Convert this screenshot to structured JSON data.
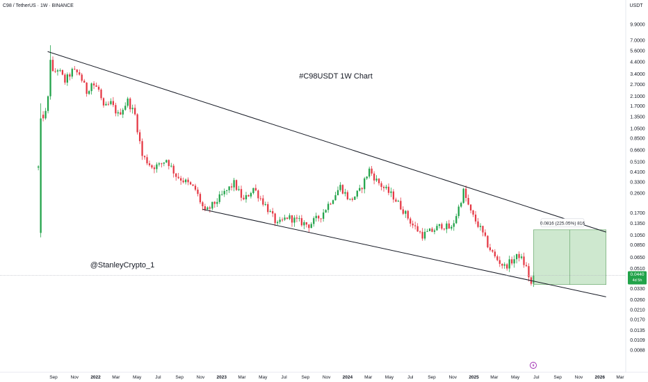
{
  "header": {
    "symbol_title": "C98 / TetherUS · 1W · BINANCE",
    "currency": "USDT"
  },
  "annotations": {
    "chart_title": "#C98USDT 1W Chart",
    "author": "@StanleyCrypto_1",
    "target_label": "0.0816 (225.05%) 816"
  },
  "price_tag": {
    "value": "0.0440",
    "countdown": "4d 5h",
    "color": "#22a34a"
  },
  "colors": {
    "up": "#22a34a",
    "down": "#e53945",
    "target_zone": "#a5d6a7",
    "target_border": "#5b9e5e",
    "trendline": "#131722"
  },
  "chart_data": {
    "type": "candlestick",
    "title": "#C98USDT 1W Chart",
    "y_scale": "log",
    "ylim": [
      0.0078,
      9.9
    ],
    "y_ticks": [
      "9.9000",
      "7.0000",
      "5.6000",
      "4.4000",
      "3.4000",
      "2.7000",
      "2.1000",
      "1.7000",
      "1.3500",
      "1.0500",
      "0.8500",
      "0.6600",
      "0.5100",
      "0.4100",
      "0.3300",
      "0.2600",
      "0.1700",
      "0.1350",
      "0.1050",
      "0.0850",
      "0.0650",
      "0.0510",
      "0.0330",
      "0.0260",
      "0.0210",
      "0.0170",
      "0.0135",
      "0.0109",
      "0.0088"
    ],
    "x_ticks": [
      "Sep",
      "Nov",
      "2022",
      "Mar",
      "May",
      "Jul",
      "Sep",
      "Nov",
      "2023",
      "Mar",
      "May",
      "Jul",
      "Sep",
      "Nov",
      "2024",
      "Mar",
      "May",
      "Jul",
      "Sep",
      "Nov",
      "2025",
      "Mar",
      "May",
      "Jul",
      "Sep",
      "Nov",
      "2026",
      "Mar"
    ],
    "x_tick_dates": [
      "2021-09-01",
      "2021-11-01",
      "2022-01-01",
      "2022-03-01",
      "2022-05-01",
      "2022-07-01",
      "2022-09-01",
      "2022-11-01",
      "2023-01-01",
      "2023-03-01",
      "2023-05-01",
      "2023-07-01",
      "2023-09-01",
      "2023-11-01",
      "2024-01-01",
      "2024-03-01",
      "2024-05-01",
      "2024-07-01",
      "2024-09-01",
      "2024-11-01",
      "2025-01-01",
      "2025-03-01",
      "2025-05-01",
      "2025-07-01",
      "2025-09-01",
      "2025-11-01",
      "2026-01-01",
      "2026-03-01"
    ],
    "year_labels": [
      "2022",
      "2023",
      "2024",
      "2025",
      "2026"
    ],
    "anchors": [
      [
        "2021-07-19",
        0.45
      ],
      [
        "2021-07-26",
        1.3
      ],
      [
        "2021-08-09",
        1.45
      ],
      [
        "2021-08-16",
        2.0
      ],
      [
        "2021-08-23",
        4.8
      ],
      [
        "2021-08-30",
        3.4
      ],
      [
        "2021-09-13",
        3.8
      ],
      [
        "2021-10-04",
        2.9
      ],
      [
        "2021-10-25",
        3.6
      ],
      [
        "2021-11-15",
        3.4
      ],
      [
        "2021-12-06",
        2.3
      ],
      [
        "2021-12-20",
        2.8
      ],
      [
        "2022-01-10",
        2.4
      ],
      [
        "2022-01-24",
        1.6
      ],
      [
        "2022-02-14",
        1.8
      ],
      [
        "2022-03-07",
        1.4
      ],
      [
        "2022-04-04",
        1.9
      ],
      [
        "2022-04-25",
        1.4
      ],
      [
        "2022-05-16",
        0.58
      ],
      [
        "2022-06-13",
        0.46
      ],
      [
        "2022-07-04",
        0.47
      ],
      [
        "2022-07-25",
        0.54
      ],
      [
        "2022-08-22",
        0.38
      ],
      [
        "2022-09-19",
        0.33
      ],
      [
        "2022-10-17",
        0.28
      ],
      [
        "2022-11-14",
        0.17
      ],
      [
        "2022-12-12",
        0.21
      ],
      [
        "2023-01-09",
        0.26
      ],
      [
        "2023-02-06",
        0.32
      ],
      [
        "2023-03-06",
        0.22
      ],
      [
        "2023-04-03",
        0.29
      ],
      [
        "2023-05-08",
        0.2
      ],
      [
        "2023-06-12",
        0.13
      ],
      [
        "2023-07-10",
        0.155
      ],
      [
        "2023-08-14",
        0.14
      ],
      [
        "2023-09-11",
        0.13
      ],
      [
        "2023-10-16",
        0.16
      ],
      [
        "2023-11-13",
        0.22
      ],
      [
        "2023-12-11",
        0.3
      ],
      [
        "2024-01-08",
        0.22
      ],
      [
        "2024-02-05",
        0.27
      ],
      [
        "2024-03-04",
        0.43
      ],
      [
        "2024-03-25",
        0.34
      ],
      [
        "2024-04-15",
        0.29
      ],
      [
        "2024-05-13",
        0.24
      ],
      [
        "2024-06-10",
        0.18
      ],
      [
        "2024-07-08",
        0.13
      ],
      [
        "2024-08-05",
        0.105
      ],
      [
        "2024-09-02",
        0.115
      ],
      [
        "2024-09-30",
        0.13
      ],
      [
        "2024-10-28",
        0.12
      ],
      [
        "2024-11-18",
        0.19
      ],
      [
        "2024-12-02",
        0.27
      ],
      [
        "2024-12-23",
        0.17
      ],
      [
        "2025-01-20",
        0.12
      ],
      [
        "2025-02-10",
        0.085
      ],
      [
        "2025-03-03",
        0.065
      ],
      [
        "2025-03-31",
        0.053
      ],
      [
        "2025-04-21",
        0.06
      ],
      [
        "2025-05-12",
        0.068
      ],
      [
        "2025-06-02",
        0.052
      ],
      [
        "2025-06-16",
        0.036
      ],
      [
        "2025-06-23",
        0.044
      ]
    ],
    "upper_trendline": [
      [
        "2021-08-15",
        5.5
      ],
      [
        "2026-01-19",
        0.112
      ]
    ],
    "lower_trendline": [
      [
        "2022-11-07",
        0.183
      ],
      [
        "2026-01-19",
        0.0277
      ]
    ],
    "target_box": {
      "from": "2025-06-23",
      "to": "2026-01-19",
      "low": 0.0361,
      "high": 0.1177
    },
    "target_label": "0.0816 (225.05%) 816",
    "current_price": 0.044
  }
}
